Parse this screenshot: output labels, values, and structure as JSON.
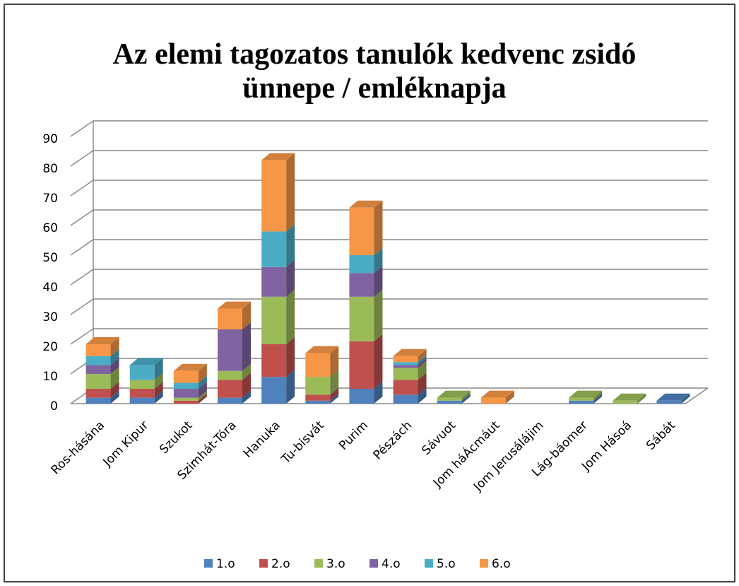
{
  "chart_data": {
    "type": "bar3d_stacked",
    "title": "Az elemi tagozatos tanulók kedvenc zsidó ünnepe / emléknapja",
    "categories": [
      "Ros-hásána",
      "Jom Kipur",
      "Szukot",
      "Szimhát-Tóra",
      "Hanuka",
      "Tu-bisvát",
      "Purim",
      "Pészách",
      "Sávuot",
      "Jom háÁcmáut",
      "Jom Jerusálájim",
      "Lág-báomer",
      "Jom Hásoá",
      "Sábát"
    ],
    "series": [
      {
        "name": "1.o",
        "color": "#4f81bd",
        "values": [
          2,
          2,
          0,
          2,
          9,
          1,
          5,
          3,
          1,
          0,
          0,
          1,
          0,
          1
        ]
      },
      {
        "name": "2.o",
        "color": "#c0504d",
        "values": [
          3,
          3,
          1,
          6,
          11,
          2,
          16,
          5,
          0,
          0,
          0,
          0,
          0,
          0
        ]
      },
      {
        "name": "3.o",
        "color": "#9bbb59",
        "values": [
          5,
          3,
          1,
          3,
          16,
          6,
          15,
          4,
          1,
          0,
          0,
          1,
          1,
          0
        ]
      },
      {
        "name": "4.o",
        "color": "#8064a2",
        "values": [
          3,
          0,
          3,
          14,
          10,
          0,
          8,
          1,
          0,
          0,
          0,
          0,
          0,
          0
        ]
      },
      {
        "name": "5.o",
        "color": "#4bacc6",
        "values": [
          3,
          5,
          2,
          0,
          12,
          0,
          6,
          1,
          0,
          0,
          0,
          0,
          0,
          0
        ]
      },
      {
        "name": "6.o",
        "color": "#f79646",
        "values": [
          4,
          0,
          4,
          7,
          24,
          8,
          16,
          2,
          0,
          2,
          0,
          0,
          0,
          0
        ]
      }
    ],
    "ylim": [
      0,
      90
    ],
    "yticks": [
      0,
      10,
      20,
      30,
      40,
      50,
      60,
      70,
      80,
      90
    ],
    "grid": true,
    "legend": "bottom"
  }
}
